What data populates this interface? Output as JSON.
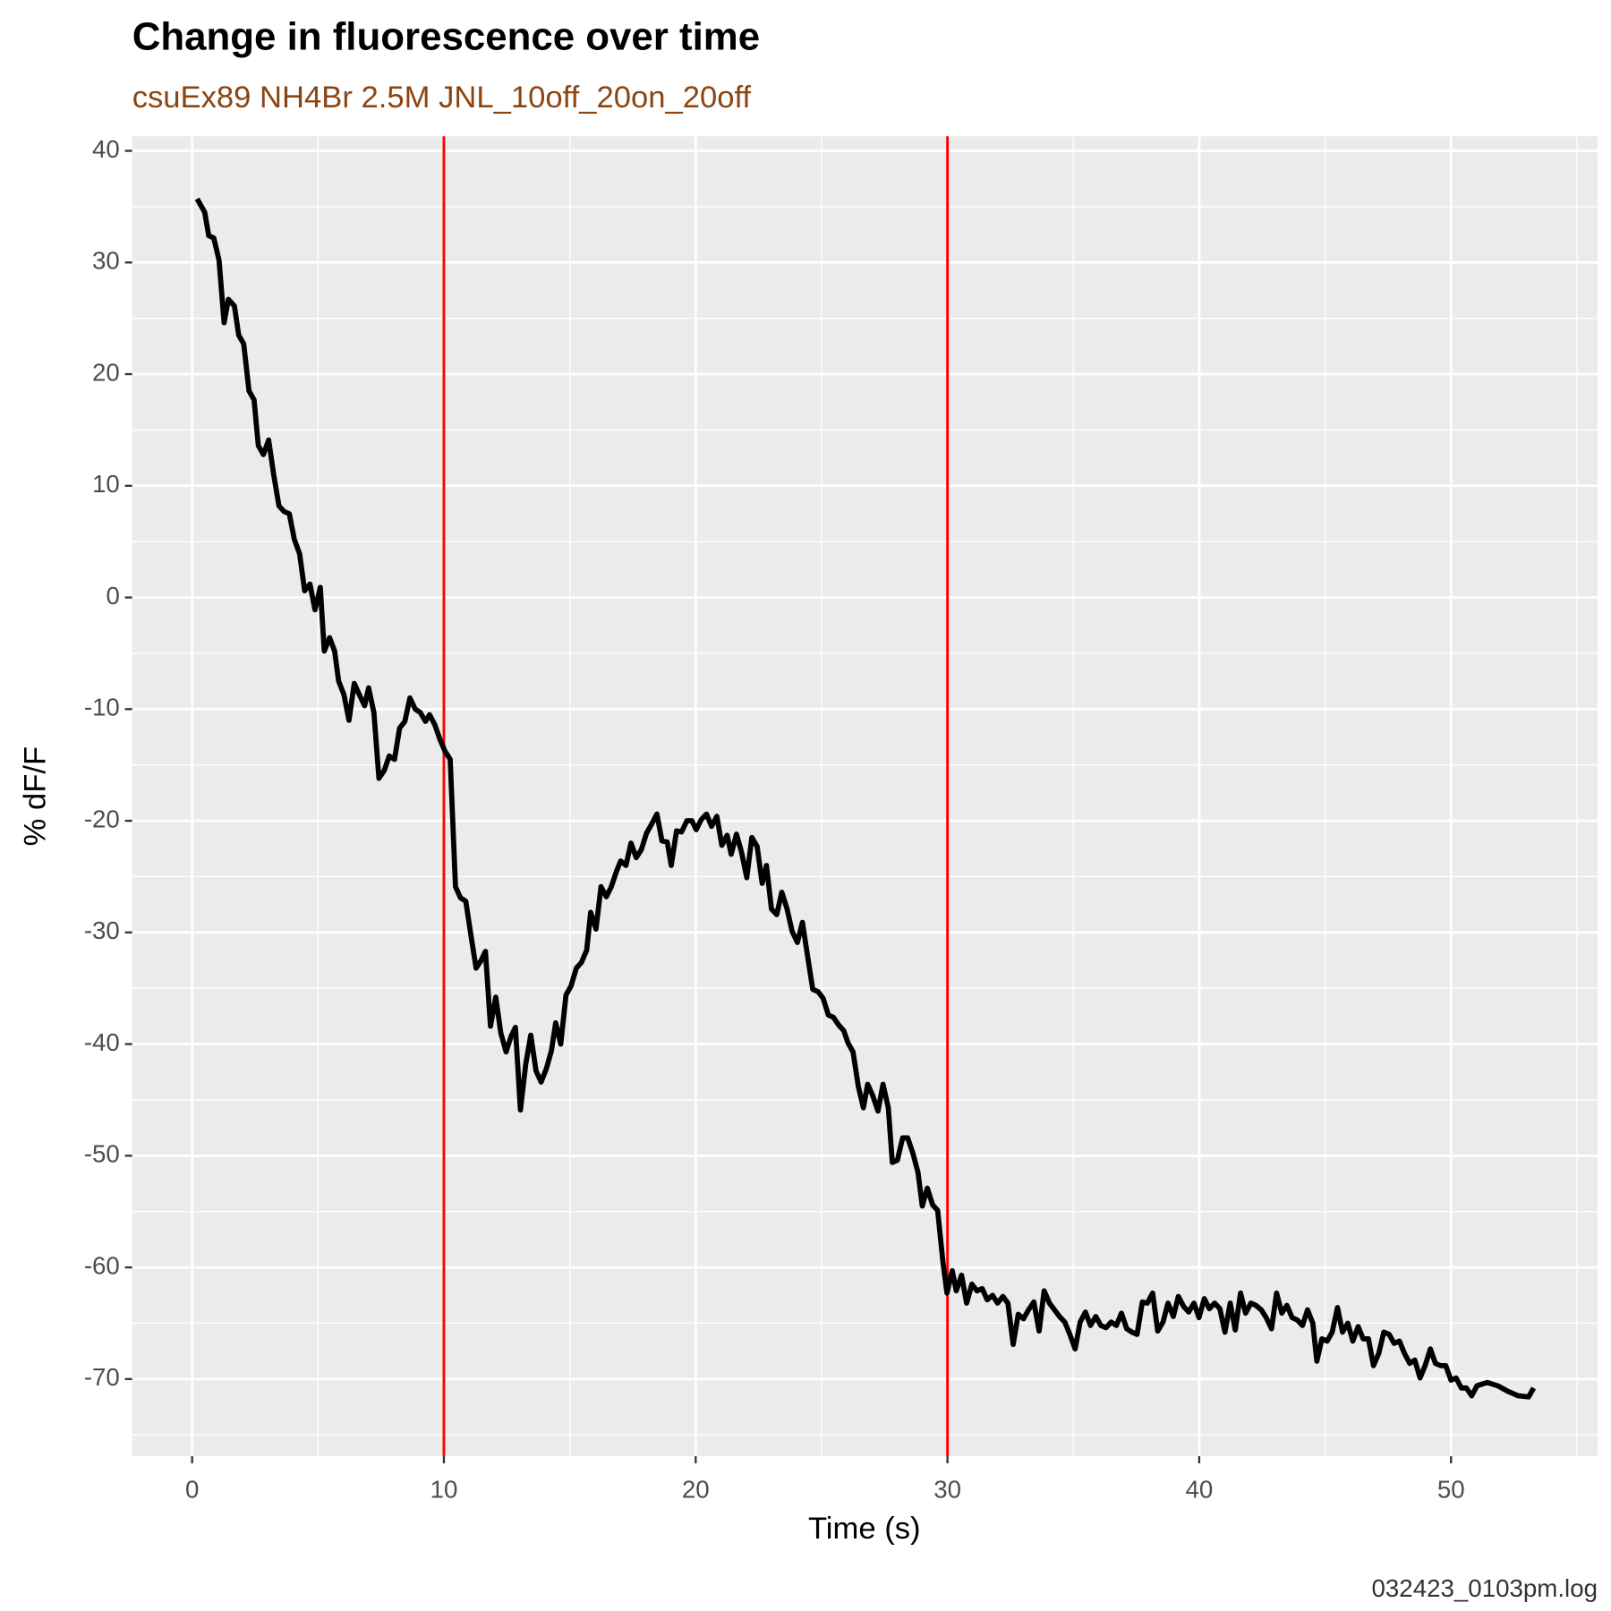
{
  "chart_data": {
    "type": "line",
    "title": "Change in fluorescence over time",
    "subtitle": "csuEx89 NH4Br 2.5M JNL_10off_20on_20off",
    "xlabel": "Time (s)",
    "ylabel": "% dF/F",
    "caption": "032423_0103pm.log",
    "xlim": [
      -2.38,
      55.82
    ],
    "ylim": [
      -76.9,
      41.3
    ],
    "xticks": [
      0,
      10,
      20,
      30,
      40,
      50
    ],
    "yticks": [
      -70,
      -60,
      -50,
      -40,
      -30,
      -20,
      -10,
      0,
      10,
      20,
      30,
      40
    ],
    "grid": true,
    "vlines": [
      10,
      30
    ],
    "vline_color": "#ff0000",
    "series": [
      {
        "color": "#000000",
        "x": [
          0.2,
          0.5,
          0.66,
          0.86,
          1.07,
          1.27,
          1.44,
          1.68,
          1.85,
          2.05,
          2.26,
          2.46,
          2.63,
          2.83,
          3.04,
          3.24,
          3.45,
          3.65,
          3.86,
          4.06,
          4.27,
          4.47,
          4.68,
          4.88,
          5.09,
          5.25,
          5.46,
          5.66,
          5.82,
          6.03,
          6.23,
          6.44,
          6.64,
          6.85,
          7.01,
          7.22,
          7.42,
          7.63,
          7.83,
          8.04,
          8.24,
          8.45,
          8.65,
          8.86,
          9.06,
          9.27,
          9.43,
          9.64,
          9.84,
          10.05,
          10.25,
          10.46,
          10.66,
          10.87,
          11.07,
          11.28,
          11.48,
          11.65,
          11.85,
          12.06,
          12.26,
          12.47,
          12.67,
          12.84,
          13.04,
          13.25,
          13.45,
          13.66,
          13.86,
          14.07,
          14.27,
          14.44,
          14.64,
          14.85,
          15.05,
          15.26,
          15.46,
          15.67,
          15.83,
          16.04,
          16.24,
          16.45,
          16.65,
          16.86,
          17.02,
          17.23,
          17.43,
          17.64,
          17.84,
          18.05,
          18.25,
          18.46,
          18.66,
          18.87,
          19.03,
          19.24,
          19.44,
          19.65,
          19.85,
          20.02,
          20.22,
          20.43,
          20.63,
          20.84,
          21.04,
          21.25,
          21.41,
          21.62,
          21.82,
          22.03,
          22.23,
          22.44,
          22.64,
          22.81,
          23.01,
          23.22,
          23.42,
          23.63,
          23.83,
          24.04,
          24.24,
          24.45,
          24.65,
          24.86,
          25.06,
          25.27,
          25.47,
          25.68,
          25.88,
          26.05,
          26.25,
          26.46,
          26.66,
          26.83,
          27.03,
          27.24,
          27.44,
          27.65,
          27.81,
          28.01,
          28.22,
          28.42,
          28.63,
          28.83,
          29.0,
          29.2,
          29.41,
          29.61,
          29.82,
          29.98,
          30.19,
          30.35,
          30.56,
          30.76,
          30.97,
          31.17,
          31.38,
          31.58,
          31.79,
          31.99,
          32.2,
          32.4,
          32.61,
          32.81,
          33.02,
          33.22,
          33.43,
          33.64,
          33.84,
          34.05,
          34.25,
          34.45,
          34.66,
          34.86,
          35.07,
          35.27,
          35.48,
          35.68,
          35.89,
          36.09,
          36.3,
          36.5,
          36.71,
          36.91,
          37.12,
          37.33,
          37.53,
          37.74,
          37.94,
          38.15,
          38.35,
          38.56,
          38.76,
          38.97,
          39.17,
          39.38,
          39.58,
          39.79,
          39.99,
          40.2,
          40.4,
          40.61,
          40.82,
          41.02,
          41.23,
          41.43,
          41.64,
          41.84,
          42.05,
          42.25,
          42.46,
          42.66,
          42.87,
          43.07,
          43.28,
          43.48,
          43.69,
          43.89,
          44.1,
          44.3,
          44.51,
          44.67,
          44.87,
          45.08,
          45.28,
          45.49,
          45.69,
          45.9,
          46.1,
          46.31,
          46.51,
          46.72,
          46.92,
          47.13,
          47.33,
          47.54,
          47.74,
          47.95,
          48.15,
          48.36,
          48.56,
          48.77,
          48.97,
          49.18,
          49.38,
          49.59,
          49.79,
          50.0,
          50.2,
          50.41,
          50.61,
          50.82,
          51.03,
          51.44,
          51.85,
          52.26,
          52.67,
          53.08,
          53.28
        ],
        "values": [
          35.7,
          34.5,
          32.4,
          32.2,
          30.2,
          24.6,
          26.7,
          26.1,
          23.5,
          22.7,
          18.5,
          17.7,
          13.6,
          12.8,
          14.1,
          11.0,
          8.2,
          7.7,
          7.5,
          5.2,
          3.9,
          0.6,
          1.2,
          -1.1,
          0.9,
          -4.8,
          -3.6,
          -4.8,
          -7.5,
          -8.7,
          -11.0,
          -7.7,
          -8.7,
          -9.7,
          -8.1,
          -10.3,
          -16.2,
          -15.5,
          -14.2,
          -14.5,
          -11.7,
          -11.1,
          -9.0,
          -10.0,
          -10.3,
          -11.1,
          -10.5,
          -11.4,
          -12.7,
          -13.8,
          -14.5,
          -25.9,
          -26.9,
          -27.2,
          -30.2,
          -33.2,
          -32.5,
          -31.7,
          -38.4,
          -35.8,
          -39.0,
          -40.7,
          -39.3,
          -38.5,
          -45.9,
          -41.8,
          -39.2,
          -42.4,
          -43.4,
          -42.2,
          -40.6,
          -38.1,
          -40.0,
          -35.6,
          -34.8,
          -33.2,
          -32.7,
          -31.6,
          -28.2,
          -29.7,
          -25.9,
          -26.8,
          -25.9,
          -24.5,
          -23.6,
          -24.0,
          -22.0,
          -23.3,
          -22.6,
          -21.1,
          -20.3,
          -19.4,
          -21.8,
          -21.9,
          -24.0,
          -20.9,
          -21.0,
          -20.0,
          -20.0,
          -20.8,
          -19.9,
          -19.4,
          -20.5,
          -19.6,
          -22.2,
          -21.3,
          -23.0,
          -21.2,
          -22.8,
          -25.1,
          -21.5,
          -22.3,
          -25.6,
          -24.0,
          -27.9,
          -28.4,
          -26.4,
          -27.9,
          -29.9,
          -30.9,
          -29.1,
          -32.2,
          -35.1,
          -35.3,
          -35.9,
          -37.4,
          -37.6,
          -38.3,
          -38.8,
          -39.9,
          -40.7,
          -43.8,
          -45.7,
          -43.6,
          -44.6,
          -46.0,
          -43.6,
          -45.7,
          -50.6,
          -50.4,
          -48.4,
          -48.4,
          -49.8,
          -51.5,
          -54.5,
          -52.9,
          -54.4,
          -54.9,
          -59.5,
          -62.3,
          -60.3,
          -62.1,
          -60.7,
          -63.2,
          -61.5,
          -62.1,
          -61.9,
          -62.9,
          -62.5,
          -63.2,
          -62.6,
          -63.2,
          -66.9,
          -64.2,
          -64.6,
          -63.8,
          -63.1,
          -65.7,
          -62.1,
          -63.2,
          -63.8,
          -64.4,
          -64.9,
          -66.0,
          -67.3,
          -64.9,
          -64.0,
          -65.2,
          -64.4,
          -65.2,
          -65.4,
          -64.9,
          -65.2,
          -64.1,
          -65.5,
          -65.8,
          -66.0,
          -63.1,
          -63.2,
          -62.3,
          -65.7,
          -64.9,
          -63.2,
          -64.4,
          -62.6,
          -63.5,
          -64.0,
          -63.2,
          -64.5,
          -62.8,
          -63.7,
          -63.2,
          -63.7,
          -65.8,
          -63.2,
          -65.6,
          -62.3,
          -64.1,
          -63.2,
          -63.4,
          -63.8,
          -64.5,
          -65.5,
          -62.3,
          -64.1,
          -63.4,
          -64.5,
          -64.7,
          -65.2,
          -63.8,
          -65.0,
          -68.4,
          -66.4,
          -66.6,
          -65.8,
          -63.6,
          -65.8,
          -65.0,
          -66.6,
          -65.3,
          -66.4,
          -66.4,
          -68.8,
          -67.7,
          -65.8,
          -66.0,
          -66.8,
          -66.6,
          -67.7,
          -68.6,
          -68.3,
          -69.9,
          -68.8,
          -67.3,
          -68.6,
          -68.8,
          -68.8,
          -70.1,
          -69.9,
          -70.8,
          -70.8,
          -71.5,
          -70.6,
          -70.3,
          -70.6,
          -71.1,
          -71.5,
          -71.6,
          -70.8
        ]
      }
    ]
  }
}
